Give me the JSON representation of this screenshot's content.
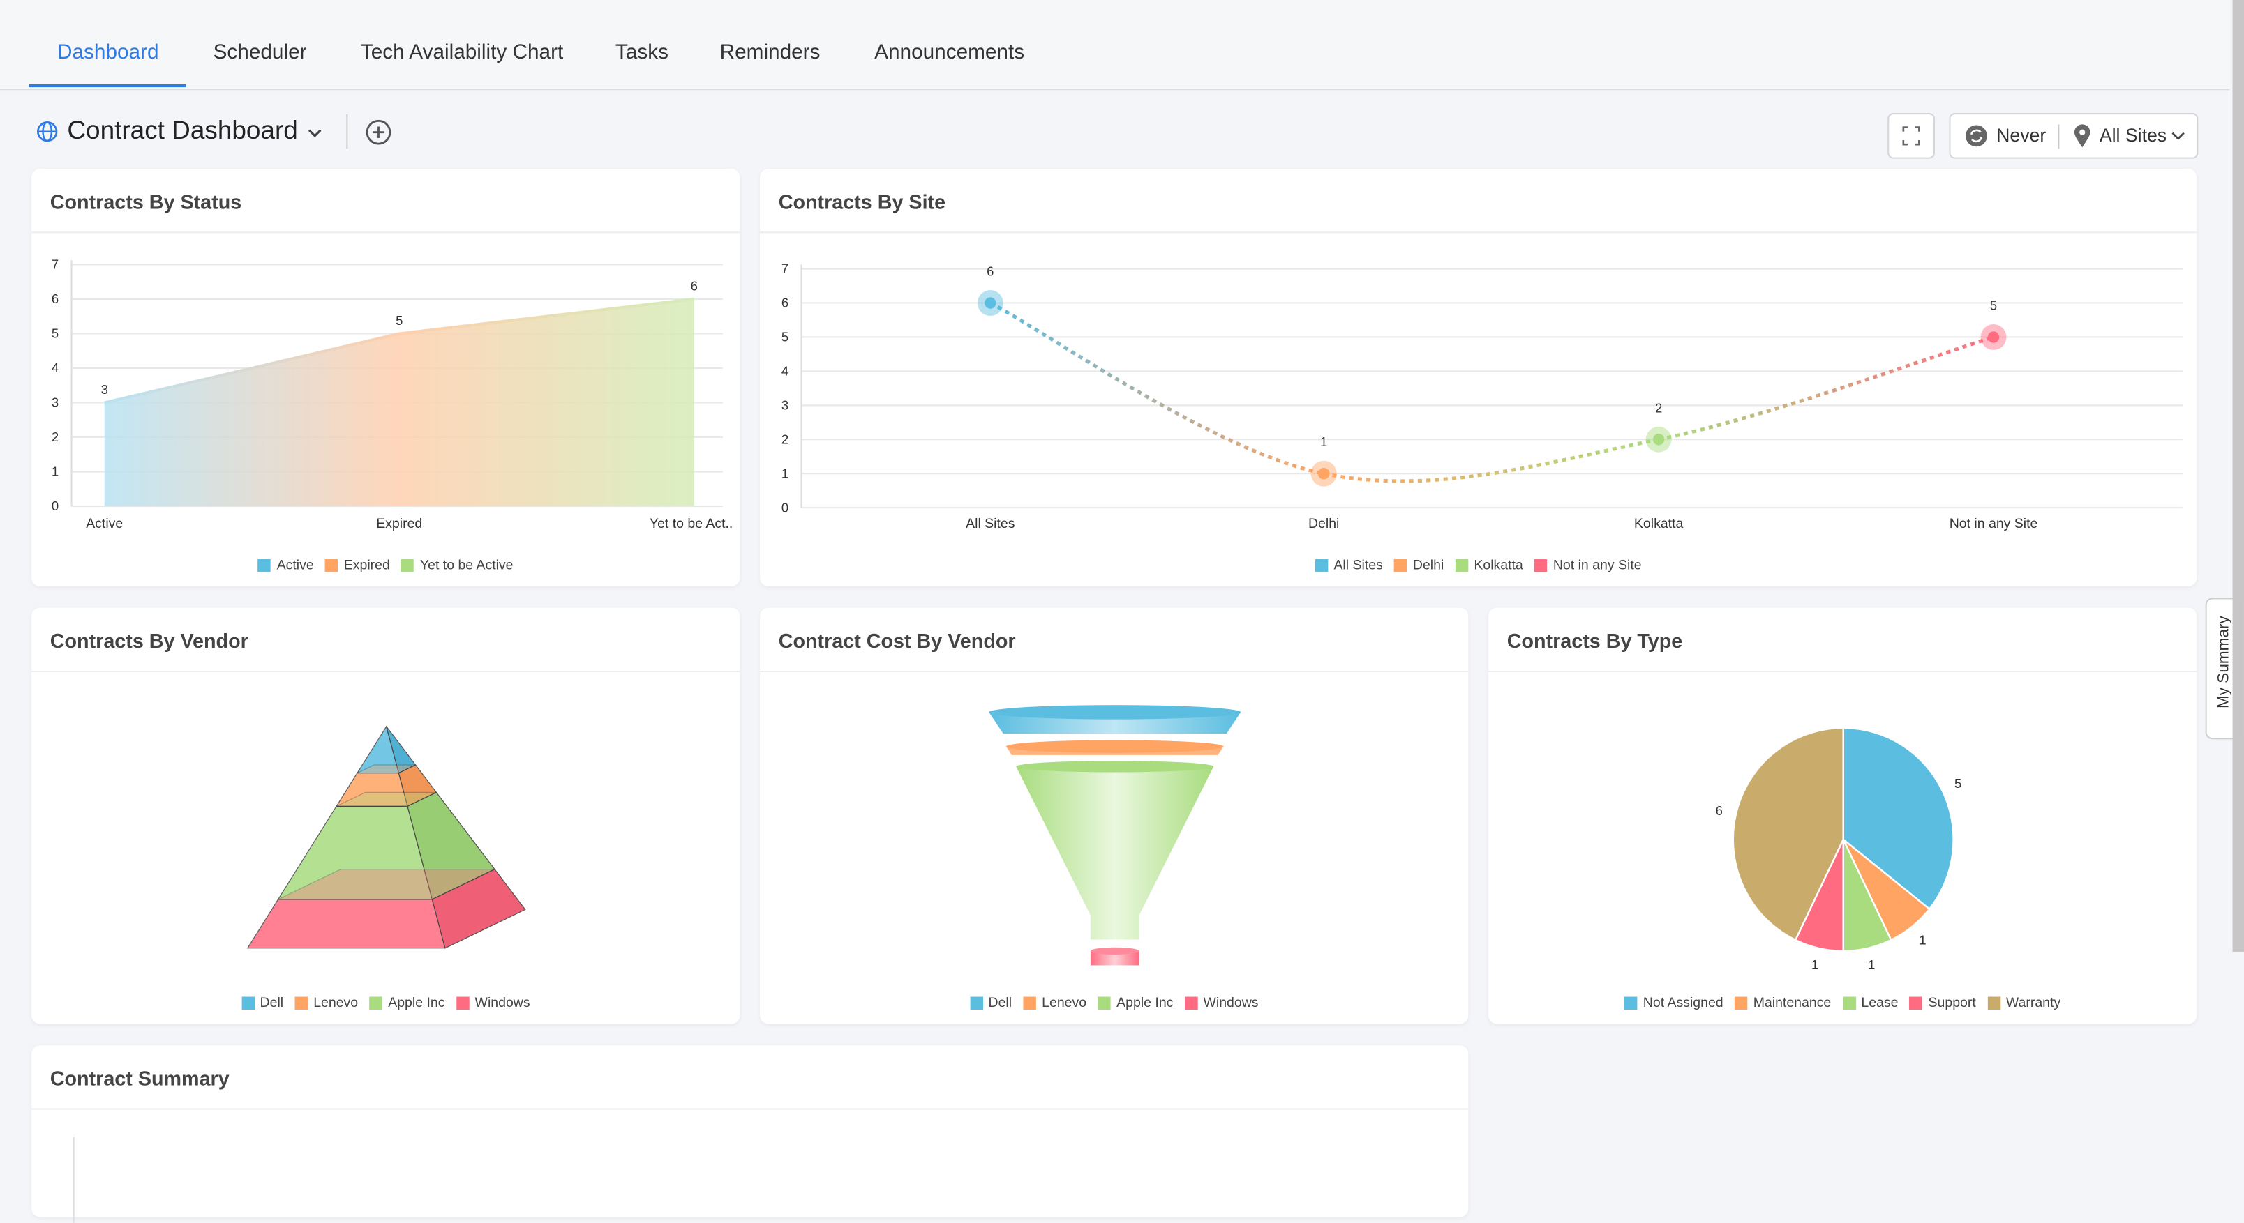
{
  "tabs": [
    {
      "label": "Dashboard",
      "active": true
    },
    {
      "label": "Scheduler"
    },
    {
      "label": "Tech Availability Chart"
    },
    {
      "label": "Tasks"
    },
    {
      "label": "Reminders"
    },
    {
      "label": "Announcements"
    }
  ],
  "header": {
    "title": "Contract Dashboard",
    "refresh_label": "Never",
    "site_label": "All Sites",
    "icons": [
      "globe-icon",
      "chevron-down-icon",
      "add-circle-icon",
      "fullscreen-icon",
      "refresh-icon",
      "location-pin-icon"
    ]
  },
  "side_tab": {
    "label": "My Summary"
  },
  "colors": {
    "blue": "#5bbde0",
    "orange": "#ffa463",
    "green": "#a8dc7e",
    "red": "#ff6b81",
    "tan": "#c9ab6b",
    "accent": "#2d7be5"
  },
  "chart_data": [
    {
      "id": "status",
      "type": "area",
      "title": "Contracts By Status",
      "categories": [
        "Active",
        "Expired",
        "Yet to be Act.."
      ],
      "values": [
        3,
        5,
        6
      ],
      "ylim": [
        0,
        7
      ],
      "yticks": [
        0,
        1,
        2,
        3,
        4,
        5,
        6,
        7
      ],
      "legend": [
        "Active",
        "Expired",
        "Yet to be Active"
      ],
      "grid": true
    },
    {
      "id": "site",
      "type": "line",
      "title": "Contracts By Site",
      "categories": [
        "All Sites",
        "Delhi",
        "Kolkatta",
        "Not in any Site"
      ],
      "values": [
        6,
        1,
        2,
        5
      ],
      "ylim": [
        0,
        7
      ],
      "yticks": [
        0,
        1,
        2,
        3,
        4,
        5,
        6,
        7
      ],
      "legend": [
        "All Sites",
        "Delhi",
        "Kolkatta",
        "Not in any Site"
      ],
      "grid": true,
      "line_style": "dashed spline"
    },
    {
      "id": "vendor",
      "type": "pyramid",
      "title": "Contracts By Vendor",
      "categories": [
        "Dell",
        "Lenevo",
        "Apple Inc",
        "Windows"
      ],
      "legend": [
        "Dell",
        "Lenevo",
        "Apple Inc",
        "Windows"
      ]
    },
    {
      "id": "cost",
      "type": "funnel",
      "title": "Contract Cost By Vendor",
      "categories": [
        "Dell",
        "Lenevo",
        "Apple Inc",
        "Windows"
      ],
      "legend": [
        "Dell",
        "Lenevo",
        "Apple Inc",
        "Windows"
      ]
    },
    {
      "id": "type",
      "type": "pie",
      "title": "Contracts By Type",
      "categories": [
        "Not Assigned",
        "Maintenance",
        "Lease",
        "Support",
        "Warranty"
      ],
      "values": [
        5,
        1,
        1,
        1,
        6
      ],
      "legend": [
        "Not Assigned",
        "Maintenance",
        "Lease",
        "Support",
        "Warranty"
      ]
    }
  ],
  "summary": {
    "title": "Contract Summary"
  }
}
